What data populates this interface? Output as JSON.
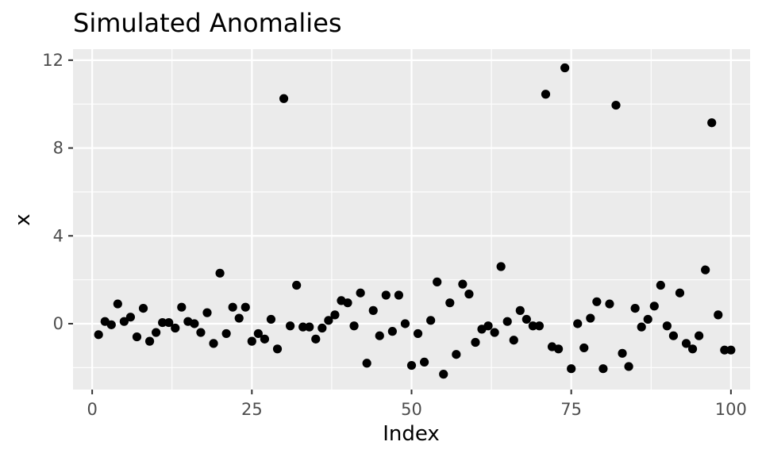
{
  "chart_data": {
    "type": "scatter",
    "title": "Simulated Anomalies",
    "xlabel": "Index",
    "ylabel": "x",
    "xlim": [
      -3,
      103
    ],
    "ylim": [
      -3.0,
      12.5
    ],
    "x_ticks": [
      0,
      25,
      50,
      75,
      100
    ],
    "x_tick_labels": [
      "0",
      "25",
      "50",
      "75",
      "100"
    ],
    "y_ticks": [
      0,
      4,
      8,
      12
    ],
    "y_tick_labels": [
      "0",
      "4",
      "8",
      "12"
    ],
    "grid": true,
    "panel_background": "#ebebeb",
    "grid_color": "#ffffff",
    "point_color": "#000000",
    "x": [
      1,
      2,
      3,
      4,
      5,
      6,
      7,
      8,
      9,
      10,
      11,
      12,
      13,
      14,
      15,
      16,
      17,
      18,
      19,
      20,
      21,
      22,
      23,
      24,
      25,
      26,
      27,
      28,
      29,
      30,
      31,
      32,
      33,
      34,
      35,
      36,
      37,
      38,
      39,
      40,
      41,
      42,
      43,
      44,
      45,
      46,
      47,
      48,
      49,
      50,
      51,
      52,
      53,
      54,
      55,
      56,
      57,
      58,
      59,
      60,
      61,
      62,
      63,
      64,
      65,
      66,
      67,
      68,
      69,
      70,
      71,
      72,
      73,
      74,
      75,
      76,
      77,
      78,
      79,
      80,
      81,
      82,
      83,
      84,
      85,
      86,
      87,
      88,
      89,
      90,
      91,
      92,
      93,
      94,
      95,
      96,
      97,
      98,
      99,
      100
    ],
    "y": [
      -0.5,
      0.1,
      -0.05,
      0.9,
      0.1,
      0.3,
      -0.6,
      0.7,
      -0.8,
      -0.4,
      0.05,
      0.05,
      -0.2,
      0.75,
      0.1,
      0.0,
      -0.4,
      0.5,
      -0.9,
      2.3,
      -0.45,
      0.75,
      0.25,
      0.75,
      -0.8,
      -0.45,
      -0.7,
      0.2,
      -1.15,
      10.25,
      -0.1,
      1.75,
      -0.15,
      -0.15,
      -0.7,
      -0.2,
      0.15,
      0.4,
      1.05,
      0.95,
      -0.1,
      1.4,
      -1.8,
      0.6,
      -0.55,
      1.3,
      -0.35,
      1.3,
      0.0,
      -1.9,
      -0.45,
      -1.75,
      0.15,
      1.9,
      -2.3,
      0.95,
      -1.4,
      1.8,
      1.35,
      -0.85,
      -0.25,
      -0.1,
      -0.4,
      2.6,
      0.1,
      -0.75,
      0.6,
      0.2,
      -0.1,
      -0.1,
      10.45,
      -1.05,
      -1.15,
      11.65,
      -2.05,
      0.0,
      -1.1,
      0.25,
      1.0,
      -2.05,
      0.9,
      9.95,
      -1.35,
      -1.95,
      0.7,
      -0.15,
      0.2,
      0.8,
      1.75,
      -0.1,
      -0.55,
      1.4,
      -0.9,
      -1.15,
      -0.55,
      2.45,
      9.15,
      0.4,
      -1.2,
      -1.2
    ]
  }
}
